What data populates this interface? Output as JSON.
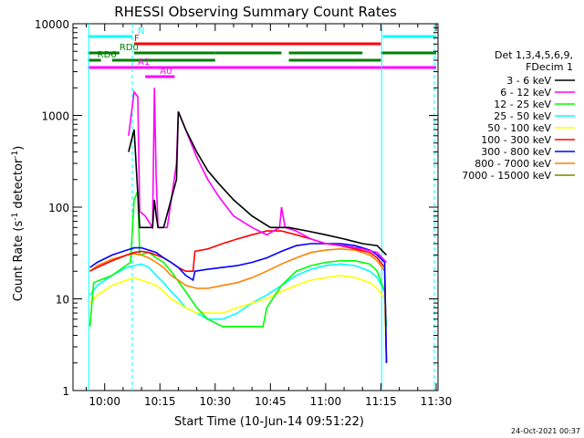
{
  "chart_data": {
    "type": "line",
    "title": "RHESSI Observing Summary Count Rates",
    "xlabel": "Start Time (10-Jun-14 09:51:22)",
    "ylabel_main": "Count Rate (s",
    "ylabel_sup1": "-1",
    "ylabel_mid": " detector",
    "ylabel_sup2": "-1",
    "ylabel_end": ")",
    "y_scale": "log",
    "ylim": [
      1,
      10000
    ],
    "xlim_minutes": [
      -4.5,
      30.5
    ],
    "x_ticks": [
      {
        "v": 0,
        "label": "10:00"
      },
      {
        "v": 15,
        "label": "10:15"
      },
      {
        "v": 30,
        "label": "10:30"
      },
      {
        "v": 45,
        "label": "10:45"
      },
      {
        "v": 60,
        "label": "11:00"
      },
      {
        "v": 75,
        "label": "11:15"
      },
      {
        "v": 90,
        "label": "11:30"
      }
    ],
    "y_ticks": [
      {
        "v": 1,
        "label": "1"
      },
      {
        "v": 10,
        "label": "10"
      },
      {
        "v": 100,
        "label": "100"
      },
      {
        "v": 1000,
        "label": "1000"
      },
      {
        "v": 10000,
        "label": "10000"
      }
    ],
    "legend_header": [
      "Det 1,3,4,5,6,9,",
      "FDecim 1"
    ],
    "legend_placement": "right",
    "series": [
      {
        "name": "3 - 6 keV",
        "color": "#000000",
        "points": [
          [
            6.5,
            400
          ],
          [
            8,
            700
          ],
          [
            9.5,
            60
          ],
          [
            11,
            60
          ],
          [
            13,
            60
          ],
          [
            13.5,
            120
          ],
          [
            14,
            80
          ],
          [
            14.5,
            60
          ],
          [
            16,
            60
          ],
          [
            19.5,
            200
          ],
          [
            20,
            1100
          ],
          [
            22,
            700
          ],
          [
            25,
            400
          ],
          [
            28,
            250
          ],
          [
            31,
            180
          ],
          [
            35,
            120
          ],
          [
            40,
            80
          ],
          [
            45,
            60
          ],
          [
            50,
            60
          ],
          [
            55,
            55
          ],
          [
            60,
            50
          ],
          [
            65,
            45
          ],
          [
            70,
            40
          ],
          [
            74,
            38
          ],
          [
            76.5,
            30
          ]
        ]
      },
      {
        "name": "6 - 12 keV",
        "color": "#ff00ff",
        "points": [
          [
            6.5,
            600
          ],
          [
            8,
            1800
          ],
          [
            9,
            1600
          ],
          [
            9.5,
            90
          ],
          [
            11,
            80
          ],
          [
            13,
            60
          ],
          [
            13.5,
            2000
          ],
          [
            14,
            200
          ],
          [
            14.5,
            60
          ],
          [
            17,
            60
          ],
          [
            19.5,
            300
          ],
          [
            20,
            1100
          ],
          [
            22,
            700
          ],
          [
            25,
            350
          ],
          [
            28,
            200
          ],
          [
            31,
            130
          ],
          [
            35,
            80
          ],
          [
            40,
            60
          ],
          [
            44,
            50
          ],
          [
            47.5,
            60
          ],
          [
            48,
            100
          ],
          [
            49,
            60
          ],
          [
            52,
            55
          ],
          [
            56,
            45
          ],
          [
            60,
            40
          ],
          [
            65,
            38
          ],
          [
            70,
            35
          ],
          [
            74,
            32
          ],
          [
            76.5,
            25
          ]
        ]
      },
      {
        "name": "12 - 25 keV",
        "color": "#00ff00",
        "points": [
          [
            -4,
            5
          ],
          [
            -3,
            15
          ],
          [
            2,
            18
          ],
          [
            7,
            25
          ],
          [
            8,
            120
          ],
          [
            9,
            150
          ],
          [
            9.5,
            30
          ],
          [
            12,
            32
          ],
          [
            14,
            28
          ],
          [
            16,
            25
          ],
          [
            18,
            20
          ],
          [
            22,
            12
          ],
          [
            25,
            8
          ],
          [
            28,
            6
          ],
          [
            32,
            5
          ],
          [
            36,
            5
          ],
          [
            40,
            5
          ],
          [
            43,
            5
          ],
          [
            44,
            8
          ],
          [
            48,
            14
          ],
          [
            52,
            20
          ],
          [
            56,
            23
          ],
          [
            60,
            25
          ],
          [
            64,
            26
          ],
          [
            68,
            26
          ],
          [
            72,
            24
          ],
          [
            74,
            20
          ],
          [
            76,
            12
          ],
          [
            76.5,
            5
          ]
        ]
      },
      {
        "name": "25 - 50 keV",
        "color": "#00ffff",
        "points": [
          [
            -4,
            11
          ],
          [
            -2,
            14
          ],
          [
            2,
            18
          ],
          [
            6,
            22
          ],
          [
            8,
            23
          ],
          [
            10,
            24
          ],
          [
            12,
            22
          ],
          [
            14,
            18
          ],
          [
            16,
            15
          ],
          [
            18,
            12
          ],
          [
            20,
            10
          ],
          [
            22,
            8
          ],
          [
            25,
            7
          ],
          [
            28,
            6
          ],
          [
            32,
            6
          ],
          [
            36,
            7
          ],
          [
            40,
            9
          ],
          [
            44,
            11
          ],
          [
            48,
            14
          ],
          [
            52,
            18
          ],
          [
            56,
            21
          ],
          [
            60,
            23
          ],
          [
            64,
            24
          ],
          [
            68,
            23
          ],
          [
            72,
            20
          ],
          [
            74,
            17
          ],
          [
            76,
            12
          ],
          [
            76.5,
            2
          ]
        ]
      },
      {
        "name": "50 - 100 keV",
        "color": "#ffff00",
        "points": [
          [
            -4,
            9
          ],
          [
            -2,
            11
          ],
          [
            2,
            14
          ],
          [
            6,
            16
          ],
          [
            8,
            17
          ],
          [
            10,
            16
          ],
          [
            12,
            15
          ],
          [
            14,
            14
          ],
          [
            16,
            12
          ],
          [
            18,
            10
          ],
          [
            20,
            9
          ],
          [
            22,
            8
          ],
          [
            25,
            7
          ],
          [
            28,
            7
          ],
          [
            32,
            7
          ],
          [
            36,
            8
          ],
          [
            40,
            9
          ],
          [
            44,
            10
          ],
          [
            48,
            12
          ],
          [
            52,
            14
          ],
          [
            56,
            16
          ],
          [
            60,
            17
          ],
          [
            64,
            18
          ],
          [
            68,
            17
          ],
          [
            72,
            15
          ],
          [
            74,
            13
          ],
          [
            76,
            10
          ],
          [
            76.5,
            2
          ]
        ]
      },
      {
        "name": "100 - 300 keV",
        "color": "#ff0000",
        "points": [
          [
            -4,
            20
          ],
          [
            -2,
            22
          ],
          [
            2,
            26
          ],
          [
            6,
            30
          ],
          [
            8,
            32
          ],
          [
            10,
            33
          ],
          [
            12,
            32
          ],
          [
            14,
            30
          ],
          [
            16,
            28
          ],
          [
            18,
            25
          ],
          [
            20,
            22
          ],
          [
            22,
            20
          ],
          [
            24,
            20
          ],
          [
            24.5,
            33
          ],
          [
            28,
            35
          ],
          [
            32,
            40
          ],
          [
            36,
            45
          ],
          [
            40,
            50
          ],
          [
            44,
            55
          ],
          [
            48,
            55
          ],
          [
            52,
            50
          ],
          [
            56,
            45
          ],
          [
            60,
            40
          ],
          [
            64,
            38
          ],
          [
            68,
            35
          ],
          [
            72,
            32
          ],
          [
            74,
            28
          ],
          [
            76,
            22
          ],
          [
            76.5,
            2
          ]
        ]
      },
      {
        "name": "300 - 800 keV",
        "color": "#0000ff",
        "points": [
          [
            -4,
            22
          ],
          [
            -2,
            25
          ],
          [
            2,
            30
          ],
          [
            6,
            34
          ],
          [
            8,
            36
          ],
          [
            10,
            36
          ],
          [
            12,
            34
          ],
          [
            14,
            32
          ],
          [
            16,
            28
          ],
          [
            18,
            25
          ],
          [
            20,
            22
          ],
          [
            22,
            18
          ],
          [
            24,
            16
          ],
          [
            24.5,
            20
          ],
          [
            28,
            21
          ],
          [
            32,
            22
          ],
          [
            36,
            23
          ],
          [
            40,
            25
          ],
          [
            44,
            28
          ],
          [
            48,
            33
          ],
          [
            52,
            38
          ],
          [
            56,
            40
          ],
          [
            60,
            40
          ],
          [
            64,
            40
          ],
          [
            68,
            38
          ],
          [
            72,
            34
          ],
          [
            74,
            30
          ],
          [
            76,
            25
          ],
          [
            76.5,
            2
          ]
        ]
      },
      {
        "name": "800 - 7000 keV",
        "color": "#ff8000",
        "points": [
          [
            -4,
            20
          ],
          [
            -2,
            23
          ],
          [
            2,
            27
          ],
          [
            6,
            30
          ],
          [
            8,
            31
          ],
          [
            10,
            30
          ],
          [
            12,
            28
          ],
          [
            14,
            25
          ],
          [
            16,
            22
          ],
          [
            18,
            18
          ],
          [
            20,
            16
          ],
          [
            22,
            14
          ],
          [
            25,
            13
          ],
          [
            28,
            13
          ],
          [
            32,
            14
          ],
          [
            36,
            15
          ],
          [
            40,
            17
          ],
          [
            44,
            20
          ],
          [
            48,
            24
          ],
          [
            52,
            28
          ],
          [
            56,
            32
          ],
          [
            60,
            34
          ],
          [
            64,
            35
          ],
          [
            68,
            34
          ],
          [
            72,
            30
          ],
          [
            74,
            26
          ],
          [
            76,
            20
          ],
          [
            76.5,
            2
          ]
        ]
      },
      {
        "name": "7000 - 15000 keV",
        "color": "#808000",
        "points": []
      }
    ],
    "flags": [
      {
        "label": "N",
        "color": "#00ffff",
        "label_at": 9,
        "segments": [
          [
            -4.5,
            7.5
          ],
          [
            75.5,
            90
          ]
        ],
        "y": 40
      },
      {
        "label": "F",
        "color": "#ff0000",
        "label_at": 8,
        "segments": [
          [
            8,
            75
          ]
        ],
        "y": 48
      },
      {
        "label": "RD0",
        "color": "#008000",
        "label_at": 4,
        "segments": [
          [
            -4.5,
            4
          ],
          [
            8,
            30
          ],
          [
            30,
            48
          ],
          [
            50,
            70
          ],
          [
            75,
            90
          ]
        ],
        "y": 58
      },
      {
        "label": "RD6",
        "color": "#008000",
        "label_at": -2,
        "segments": [
          [
            -4.5,
            -1
          ],
          [
            2,
            30
          ],
          [
            50,
            75
          ]
        ],
        "y": 66
      },
      {
        "label": "A1",
        "color": "#ff00ff",
        "label_at": 9,
        "segments": [
          [
            -4.5,
            90
          ]
        ],
        "y": 74
      },
      {
        "label": "A0",
        "color": "#ff00ff",
        "label_at": 15,
        "segments": [
          [
            11,
            19
          ]
        ],
        "y": 84
      }
    ],
    "vlines_solid_minutes": [
      -4.3,
      75.2
    ],
    "vlines_dashed_minutes": [
      7.5,
      89.5
    ],
    "timestamp": "24-Oct-2021 00:37"
  }
}
